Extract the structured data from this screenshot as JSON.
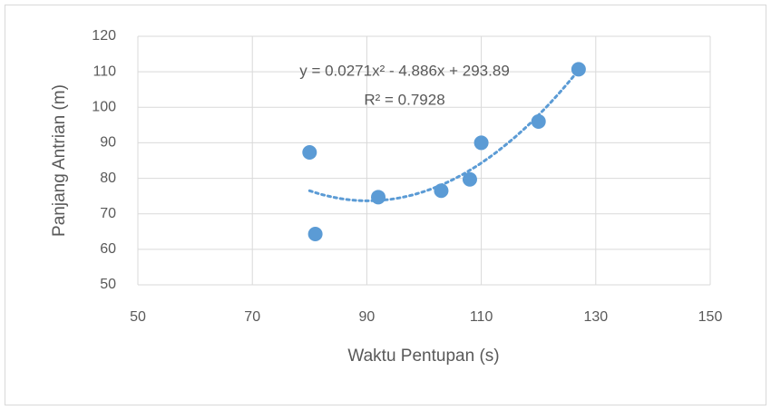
{
  "chart_data": {
    "type": "scatter",
    "x_label": "Waktu Pentupan (s)",
    "y_label": "Panjang Antrian (m)",
    "series": [
      {
        "color": "#5b9bd5",
        "x": [
          80,
          81,
          92,
          103,
          108,
          110,
          120,
          127
        ],
        "values": [
          87.3,
          64.3,
          74.7,
          76.5,
          79.7,
          90,
          96,
          110.7
        ]
      }
    ],
    "trendline": {
      "type": "polynomial",
      "color": "#5b9bd5",
      "equation": "y = 0.0271x² - 4.886x + 293.89",
      "r_squared": "R² = 0.7928"
    },
    "xlim": [
      50,
      150
    ],
    "xticks": [
      50,
      70,
      90,
      110,
      130,
      150
    ],
    "ylim": [
      50,
      120
    ],
    "yticks": [
      50,
      60,
      70,
      80,
      90,
      100,
      110,
      120
    ],
    "grid": true
  }
}
